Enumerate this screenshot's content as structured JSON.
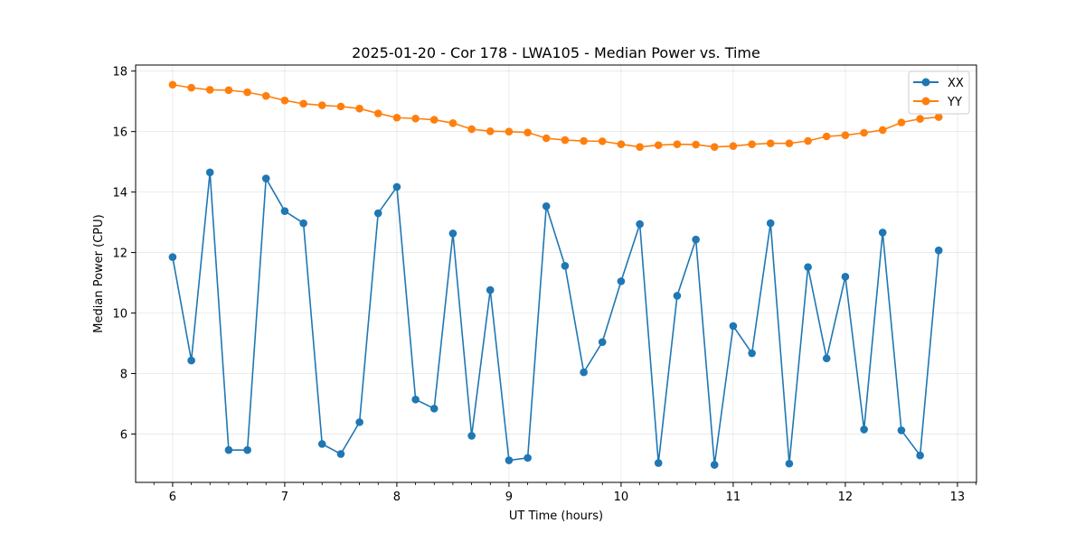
{
  "chart_data": {
    "type": "line",
    "title": "2025-01-20 - Cor 178 - LWA105 - Median Power vs. Time",
    "xlabel": "UT Time (hours)",
    "ylabel": "Median Power (CPU)",
    "xlim": [
      5.67,
      13.17
    ],
    "ylim": [
      4.4,
      18.2
    ],
    "xticks": [
      6,
      7,
      8,
      9,
      10,
      11,
      12,
      13
    ],
    "xtick_labels": [
      "6",
      "7",
      "8",
      "9",
      "10",
      "11",
      "12",
      "13"
    ],
    "yticks": [
      6,
      8,
      10,
      12,
      14,
      16,
      18
    ],
    "ytick_labels": [
      "6",
      "8",
      "10",
      "12",
      "14",
      "16",
      "18"
    ],
    "grid": true,
    "legend_position": "top-right",
    "x": [
      6.0,
      6.167,
      6.333,
      6.5,
      6.667,
      6.833,
      7.0,
      7.167,
      7.333,
      7.5,
      7.667,
      7.833,
      8.0,
      8.167,
      8.333,
      8.5,
      8.667,
      8.833,
      9.0,
      9.167,
      9.333,
      9.5,
      9.667,
      9.833,
      10.0,
      10.167,
      10.333,
      10.5,
      10.667,
      10.833,
      11.0,
      11.167,
      11.333,
      11.5,
      11.667,
      11.833,
      12.0,
      12.167,
      12.333,
      12.5,
      12.667,
      12.833
    ],
    "series": [
      {
        "name": "XX",
        "color": "#1f77b4",
        "values": [
          11.85,
          8.43,
          14.65,
          5.47,
          5.47,
          14.45,
          13.37,
          12.97,
          5.67,
          5.34,
          6.39,
          13.3,
          14.17,
          7.14,
          6.84,
          12.63,
          5.94,
          10.76,
          5.13,
          5.21,
          13.53,
          11.56,
          8.04,
          9.04,
          11.05,
          12.94,
          5.04,
          10.57,
          12.43,
          4.98,
          9.57,
          8.67,
          12.97,
          5.02,
          11.52,
          8.5,
          11.2,
          6.15,
          12.66,
          6.12,
          5.29,
          12.07
        ]
      },
      {
        "name": "YY",
        "color": "#ff7f0e",
        "values": [
          17.55,
          17.45,
          17.38,
          17.37,
          17.3,
          17.18,
          17.03,
          16.92,
          16.87,
          16.83,
          16.76,
          16.6,
          16.46,
          16.43,
          16.39,
          16.28,
          16.08,
          16.01,
          16.0,
          15.97,
          15.78,
          15.72,
          15.69,
          15.68,
          15.58,
          15.49,
          15.55,
          15.58,
          15.57,
          15.49,
          15.52,
          15.58,
          15.61,
          15.61,
          15.69,
          15.84,
          15.88,
          15.96,
          16.05,
          16.3,
          16.42,
          16.48
        ]
      }
    ]
  }
}
